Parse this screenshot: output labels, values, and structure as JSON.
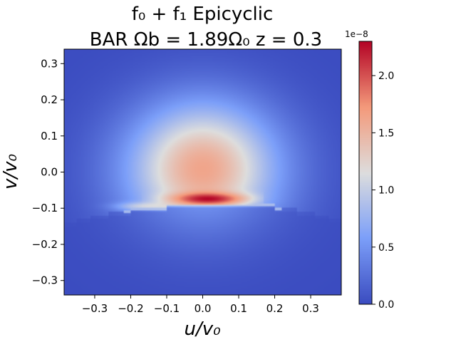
{
  "chart_data": {
    "type": "heatmap",
    "title_line1": "f₀ + f₁       Epicyclic",
    "title_line2": "BAR    Ωb = 1.89Ω₀    z = 0.3",
    "xlabel": "u/v₀",
    "ylabel": "v/v₀",
    "xlim": [
      -0.385,
      0.385
    ],
    "ylim": [
      -0.34,
      0.34
    ],
    "x_ticks": [
      -0.3,
      -0.2,
      -0.1,
      0.0,
      0.1,
      0.2,
      0.3
    ],
    "x_tick_labels": [
      "−0.3",
      "−0.2",
      "−0.1",
      "0.0",
      "0.1",
      "0.2",
      "0.3"
    ],
    "y_ticks": [
      0.3,
      0.2,
      0.1,
      0.0,
      -0.1,
      -0.2,
      -0.3
    ],
    "y_tick_labels": [
      "0.3",
      "0.2",
      "0.1",
      "0.0",
      "−0.1",
      "−0.2",
      "−0.3"
    ],
    "colormap": "coolwarm",
    "colorbar": {
      "range": [
        0.0,
        2.3
      ],
      "ticks": [
        0.0,
        0.5,
        1.0,
        1.5,
        2.0
      ],
      "tick_labels": [
        "0.0",
        "0.5",
        "1.0",
        "1.5",
        "2.0"
      ],
      "exponent_label": "1e−8"
    },
    "features": {
      "peak_location": [
        0.02,
        -0.075
      ],
      "peak_value": 2.3,
      "blob_center": [
        0.0,
        0.0
      ],
      "resonance_gap_y": -0.09
    }
  }
}
